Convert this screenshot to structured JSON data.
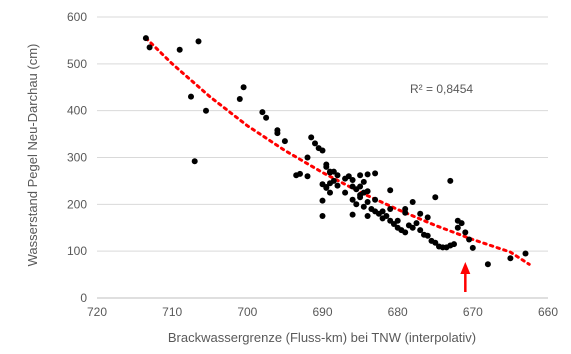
{
  "chart_data": {
    "type": "scatter",
    "title": "",
    "xlabel": "Brackwassergrenze (Fluss-km) bei TNW (interpolativ)",
    "ylabel": "Wasserstand Pegel Neu-Darchau (cm)",
    "xlim": [
      720,
      660
    ],
    "x_reversed": true,
    "ylim": [
      0,
      600
    ],
    "xticks": [
      720,
      710,
      700,
      690,
      680,
      670,
      660
    ],
    "yticks": [
      0,
      100,
      200,
      300,
      400,
      500,
      600
    ],
    "grid": {
      "horizontal": true,
      "vertical": false
    },
    "annotation": "R² = 0,8454",
    "trendline": {
      "type": "polynomial",
      "style": "dotted",
      "color": "#ff0000",
      "points": [
        [
          713.5,
          555
        ],
        [
          710,
          500
        ],
        [
          705,
          430
        ],
        [
          700,
          368
        ],
        [
          695,
          315
        ],
        [
          690,
          268
        ],
        [
          685,
          226
        ],
        [
          680,
          189
        ],
        [
          675,
          155
        ],
        [
          670,
          125
        ],
        [
          665,
          98
        ],
        [
          662.5,
          72
        ]
      ]
    },
    "marker_color": "#000000",
    "arrow": {
      "x": 671,
      "color": "#ff0000"
    },
    "points": [
      [
        713.5,
        555
      ],
      [
        713,
        535
      ],
      [
        709,
        530
      ],
      [
        706.5,
        548
      ],
      [
        707.5,
        430
      ],
      [
        707,
        292
      ],
      [
        705.5,
        400
      ],
      [
        701,
        425
      ],
      [
        700.5,
        450
      ],
      [
        698,
        397
      ],
      [
        697.5,
        385
      ],
      [
        696,
        358
      ],
      [
        696,
        352
      ],
      [
        695,
        335
      ],
      [
        693,
        265
      ],
      [
        693.5,
        262
      ],
      [
        692,
        260
      ],
      [
        692,
        300
      ],
      [
        691.5,
        343
      ],
      [
        691,
        330
      ],
      [
        690.5,
        320
      ],
      [
        690,
        315
      ],
      [
        689.5,
        285
      ],
      [
        689.5,
        280
      ],
      [
        689,
        268
      ],
      [
        688.5,
        270
      ],
      [
        688.5,
        250
      ],
      [
        689,
        245
      ],
      [
        690,
        243
      ],
      [
        689.5,
        237
      ],
      [
        689,
        225
      ],
      [
        690,
        208
      ],
      [
        690,
        175
      ],
      [
        689.5,
        235
      ],
      [
        689,
        270
      ],
      [
        688,
        262
      ],
      [
        687,
        255
      ],
      [
        686,
        238
      ],
      [
        686,
        252
      ],
      [
        685.5,
        232
      ],
      [
        685,
        220
      ],
      [
        684.5,
        225
      ],
      [
        684,
        228
      ],
      [
        685,
        215
      ],
      [
        686,
        210
      ],
      [
        685.5,
        200
      ],
      [
        684.5,
        195
      ],
      [
        684,
        205
      ],
      [
        683.5,
        190
      ],
      [
        683,
        185
      ],
      [
        682.5,
        180
      ],
      [
        682,
        185
      ],
      [
        681.5,
        175
      ],
      [
        681,
        165
      ],
      [
        680.5,
        158
      ],
      [
        680,
        150
      ],
      [
        679.5,
        145
      ],
      [
        679,
        140
      ],
      [
        678.5,
        155
      ],
      [
        678,
        150
      ],
      [
        677.5,
        160
      ],
      [
        677,
        145
      ],
      [
        676.5,
        135
      ],
      [
        676,
        133
      ],
      [
        675.5,
        122
      ],
      [
        675,
        118
      ],
      [
        674.5,
        110
      ],
      [
        674,
        108
      ],
      [
        673.5,
        108
      ],
      [
        673,
        112
      ],
      [
        672.5,
        115
      ],
      [
        672,
        150
      ],
      [
        671.5,
        160
      ],
      [
        671,
        140
      ],
      [
        670.5,
        125
      ],
      [
        670,
        107
      ],
      [
        668,
        72
      ],
      [
        665,
        85
      ],
      [
        663,
        95
      ],
      [
        685,
        262
      ],
      [
        684,
        264
      ],
      [
        683,
        266
      ],
      [
        684.5,
        248
      ],
      [
        686.5,
        260
      ],
      [
        681,
        190
      ],
      [
        679,
        182
      ],
      [
        677,
        180
      ],
      [
        675,
        215
      ],
      [
        673,
        250
      ],
      [
        672,
        165
      ],
      [
        681,
        230
      ],
      [
        686,
        178
      ],
      [
        682,
        170
      ],
      [
        680,
        165
      ],
      [
        678,
        205
      ],
      [
        684,
        175
      ],
      [
        687,
        225
      ],
      [
        688,
        240
      ],
      [
        685,
        238
      ],
      [
        683,
        210
      ],
      [
        679,
        190
      ],
      [
        676,
        172
      ]
    ]
  }
}
